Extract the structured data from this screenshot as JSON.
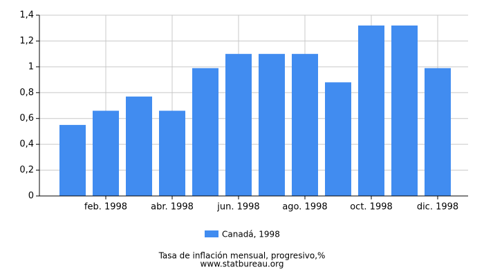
{
  "chart_data": {
    "type": "bar",
    "categories": [
      null,
      "feb. 1998",
      null,
      "abr. 1998",
      null,
      "jun. 1998",
      null,
      "ago. 1998",
      null,
      "oct. 1998",
      null,
      "dic. 1998"
    ],
    "series": [
      {
        "name": "Canadá, 1998",
        "color": "#418cf0",
        "values": [
          0.55,
          0.66,
          0.77,
          0.66,
          0.99,
          1.1,
          1.1,
          1.1,
          0.88,
          1.32,
          1.32,
          0.99
        ]
      }
    ],
    "ylim": [
      0,
      1.4
    ],
    "yticks": [
      0,
      {
        "value": 0.2,
        "label": "0,2"
      },
      {
        "value": 0.4,
        "label": "0,4"
      },
      {
        "value": 0.6,
        "label": "0,6"
      },
      {
        "value": 0.8,
        "label": "0,8"
      },
      1,
      {
        "value": 1.2,
        "label": "1,2"
      },
      {
        "value": 1.4,
        "label": "1,4"
      }
    ],
    "grid": true,
    "caption": "Tasa de inflación mensual, progresivo,%",
    "source": "www.statbureau.org"
  }
}
